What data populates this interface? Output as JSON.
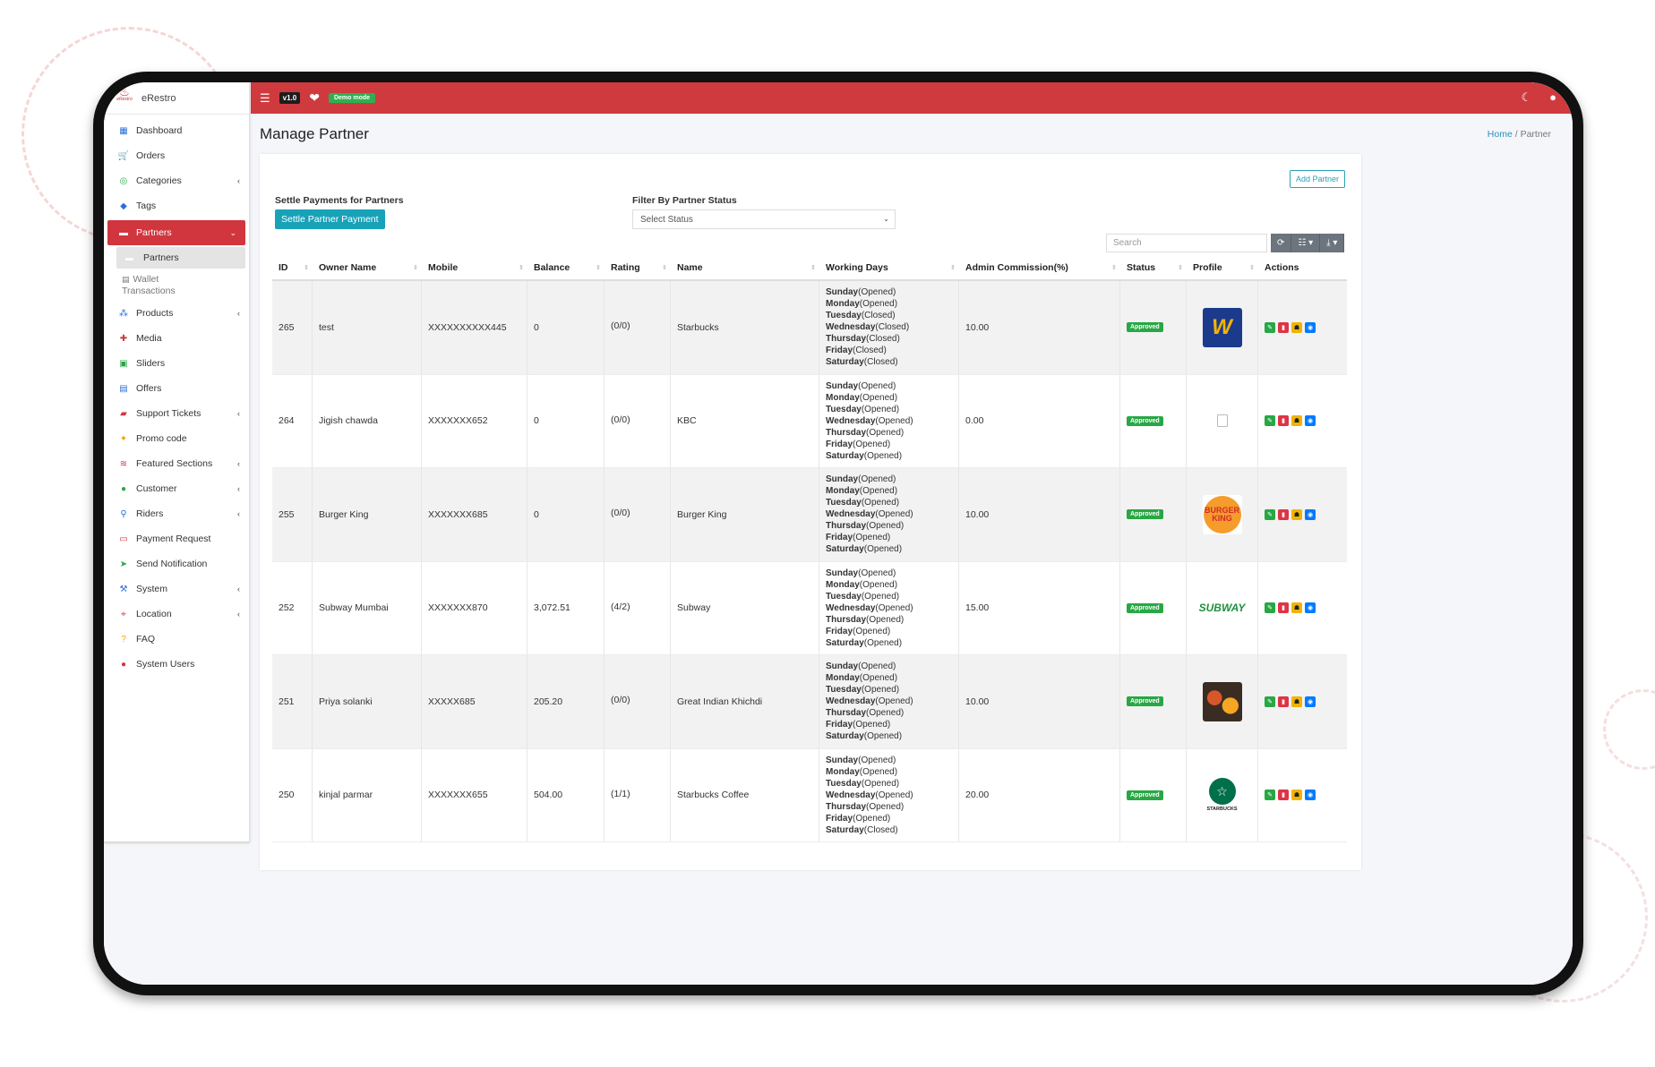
{
  "app": {
    "name": "eRestro",
    "version": "v1.0",
    "demo_badge": "Demo mode",
    "logo_small": "eRestro"
  },
  "sidebar": {
    "items": [
      {
        "label": "Dashboard",
        "icon": "dashboard-icon",
        "chevron": false
      },
      {
        "label": "Orders",
        "icon": "cart-icon",
        "chevron": false
      },
      {
        "label": "Categories",
        "icon": "categories-icon",
        "chevron": true
      },
      {
        "label": "Tags",
        "icon": "tag-icon",
        "chevron": false
      },
      {
        "label": "Partners",
        "icon": "partners-icon",
        "chevron": true,
        "active": true
      },
      {
        "label": "Products",
        "icon": "products-icon",
        "chevron": true
      },
      {
        "label": "Media",
        "icon": "media-icon",
        "chevron": false
      },
      {
        "label": "Sliders",
        "icon": "sliders-icon",
        "chevron": false
      },
      {
        "label": "Offers",
        "icon": "gift-icon",
        "chevron": false
      },
      {
        "label": "Support Tickets",
        "icon": "ticket-icon",
        "chevron": true
      },
      {
        "label": "Promo code",
        "icon": "puzzle-icon",
        "chevron": false
      },
      {
        "label": "Featured Sections",
        "icon": "layers-icon",
        "chevron": true
      },
      {
        "label": "Customer",
        "icon": "user-icon",
        "chevron": true
      },
      {
        "label": "Riders",
        "icon": "bike-icon",
        "chevron": true
      },
      {
        "label": "Payment Request",
        "icon": "money-icon",
        "chevron": false
      },
      {
        "label": "Send Notification",
        "icon": "send-icon",
        "chevron": false
      },
      {
        "label": "System",
        "icon": "wrench-icon",
        "chevron": true
      },
      {
        "label": "Location",
        "icon": "location-icon",
        "chevron": true
      },
      {
        "label": "FAQ",
        "icon": "question-icon",
        "chevron": false
      },
      {
        "label": "System Users",
        "icon": "system-user-icon",
        "chevron": false
      }
    ],
    "sub_items": {
      "partners": "Partners",
      "wallet_line1": "Wallet",
      "wallet_line2": "Transactions"
    }
  },
  "header": {
    "page_title": "Manage Partner",
    "breadcrumb_home": "Home",
    "breadcrumb_sep": "/",
    "breadcrumb_current": "Partner"
  },
  "controls": {
    "add_partner": "Add Partner",
    "settle_label": "Settle Payments for Partners",
    "settle_button": "Settle Partner Payment",
    "filter_label": "Filter By Partner Status",
    "filter_value": "Select Status",
    "search_placeholder": "Search"
  },
  "table": {
    "headers": [
      "ID",
      "Owner Name",
      "Mobile",
      "Balance",
      "Rating",
      "Name",
      "Working Days",
      "Admin Commission(%)",
      "Status",
      "Profile",
      "Actions"
    ],
    "day_names": [
      "Sunday",
      "Monday",
      "Tuesday",
      "Wednesday",
      "Thursday",
      "Friday",
      "Saturday"
    ],
    "rows": [
      {
        "id": "265",
        "owner": "test",
        "mobile": "XXXXXXXXXX445",
        "balance": "0",
        "rating": "(0/0)",
        "name": "Starbucks",
        "days": [
          "(Opened)",
          "(Opened)",
          "(Closed)",
          "(Closed)",
          "(Closed)",
          "(Closed)",
          "(Closed)"
        ],
        "commission": "10.00",
        "status": "Approved",
        "profile": "wn"
      },
      {
        "id": "264",
        "owner": "Jigish chawda",
        "mobile": "XXXXXXX652",
        "balance": "0",
        "rating": "(0/0)",
        "name": "KBC",
        "days": [
          "(Opened)",
          "(Opened)",
          "(Opened)",
          "(Opened)",
          "(Opened)",
          "(Opened)",
          "(Opened)"
        ],
        "commission": "0.00",
        "status": "Approved",
        "profile": "ph"
      },
      {
        "id": "255",
        "owner": "Burger King",
        "mobile": "XXXXXXX685",
        "balance": "0",
        "rating": "(0/0)",
        "name": "Burger King",
        "days": [
          "(Opened)",
          "(Opened)",
          "(Opened)",
          "(Opened)",
          "(Opened)",
          "(Opened)",
          "(Opened)"
        ],
        "commission": "10.00",
        "status": "Approved",
        "profile": "bk",
        "profile_text": "BURGER KING"
      },
      {
        "id": "252",
        "owner": "Subway Mumbai",
        "mobile": "XXXXXXX870",
        "balance": "3,072.51",
        "rating": "(4/2)",
        "name": "Subway",
        "days": [
          "(Opened)",
          "(Opened)",
          "(Opened)",
          "(Opened)",
          "(Opened)",
          "(Opened)",
          "(Opened)"
        ],
        "commission": "15.00",
        "status": "Approved",
        "profile": "sw",
        "profile_text": "SUBWAY"
      },
      {
        "id": "251",
        "owner": "Priya solanki",
        "mobile": "XXXXX685",
        "balance": "205.20",
        "rating": "(0/0)",
        "name": "Great Indian Khichdi",
        "days": [
          "(Opened)",
          "(Opened)",
          "(Opened)",
          "(Opened)",
          "(Opened)",
          "(Opened)",
          "(Opened)"
        ],
        "commission": "10.00",
        "status": "Approved",
        "profile": "fd"
      },
      {
        "id": "250",
        "owner": "kinjal parmar",
        "mobile": "XXXXXXX655",
        "balance": "504.00",
        "rating": "(1/1)",
        "name": "Starbucks Coffee",
        "days": [
          "(Opened)",
          "(Opened)",
          "(Opened)",
          "(Opened)",
          "(Opened)",
          "(Opened)",
          "(Closed)"
        ],
        "commission": "20.00",
        "status": "Approved",
        "profile": "sb",
        "profile_text": "STARBUCKS"
      }
    ]
  },
  "colors": {
    "brand_red": "#cf3a3f",
    "approved_green": "#28a745",
    "settle_teal": "#17a2b8"
  }
}
